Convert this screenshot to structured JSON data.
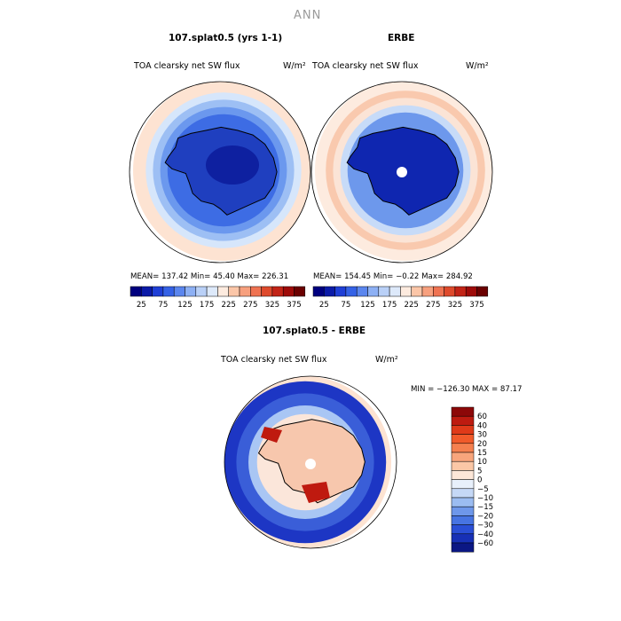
{
  "figure": {
    "super_title": "ANN"
  },
  "colors": {
    "coast": "#000000",
    "ocean_background": "#fde3d2",
    "ice_blue_deep": "#1d36c4",
    "accent_red": "#bf1a0f"
  },
  "chart_data": [
    {
      "type": "heatmap",
      "projection": "south-polar-stereographic",
      "title": "107.splat0.5 (yrs 1-1)",
      "field": "TOA clearsky net SW flux",
      "units": "W/m²",
      "stats": {
        "mean": 137.42,
        "min": 45.4,
        "max": 226.31
      },
      "stats_text": "MEAN= 137.42  Min=  45.40  Max= 226.31",
      "contour_levels": [
        25,
        50,
        75,
        100,
        125,
        150,
        175,
        200,
        225,
        250,
        275,
        300,
        325,
        350,
        375
      ],
      "colorbar_tick_labels": [
        "25",
        "75",
        "125",
        "175",
        "225",
        "275",
        "325",
        "375"
      ],
      "colorbar_orientation": "horizontal",
      "colorbar_colors": [
        "#00007f",
        "#0b1ba8",
        "#1f3fd6",
        "#3562e6",
        "#5b86ee",
        "#8db0f4",
        "#b9d0f7",
        "#dde9fa",
        "#fdebdf",
        "#fbc6a8",
        "#f7a07e",
        "#ef7352",
        "#de4a2c",
        "#c22417",
        "#9e0b09",
        "#6b0000"
      ],
      "field_rings": [
        {
          "radius_fraction": 1.0,
          "color": "#fde3d2"
        },
        {
          "radius_fraction": 0.86,
          "color": "#d6e6fb"
        },
        {
          "radius_fraction": 0.78,
          "color": "#9dbff4"
        },
        {
          "radius_fraction": 0.7,
          "color": "#6b98ee"
        },
        {
          "radius_fraction": 0.62,
          "color": "#3d6ce4"
        }
      ]
    },
    {
      "type": "heatmap",
      "projection": "south-polar-stereographic",
      "title": "ERBE",
      "field": "TOA clearsky net SW flux",
      "units": "W/m²",
      "stats": {
        "mean": 154.45,
        "min": -0.22,
        "max": 284.92
      },
      "stats_text": "MEAN= 154.45  Min=  −0.22  Max= 284.92",
      "contour_levels": [
        25,
        50,
        75,
        100,
        125,
        150,
        175,
        200,
        225,
        250,
        275,
        300,
        325,
        350,
        375
      ],
      "colorbar_tick_labels": [
        "25",
        "75",
        "125",
        "175",
        "225",
        "275",
        "325",
        "375"
      ],
      "colorbar_orientation": "horizontal",
      "colorbar_colors": [
        "#00007f",
        "#0b1ba8",
        "#1f3fd6",
        "#3562e6",
        "#5b86ee",
        "#8db0f4",
        "#b9d0f7",
        "#dde9fa",
        "#fdebdf",
        "#fbc6a8",
        "#f7a07e",
        "#ef7352",
        "#de4a2c",
        "#c22417",
        "#9e0b09",
        "#6b0000"
      ],
      "field_rings": [
        {
          "radius_fraction": 1.0,
          "color": "#fdebdf"
        },
        {
          "radius_fraction": 0.88,
          "color": "#f9c9ae"
        },
        {
          "radius_fraction": 0.8,
          "color": "#fbe4d6"
        },
        {
          "radius_fraction": 0.72,
          "color": "#c7dbf8"
        },
        {
          "radius_fraction": 0.64,
          "color": "#6d98ec"
        }
      ]
    },
    {
      "type": "heatmap",
      "projection": "south-polar-stereographic",
      "title": "107.splat0.5 - ERBE",
      "field": "TOA clearsky net SW flux",
      "units": "W/m²",
      "stats": {
        "min": -126.3,
        "max": 87.17
      },
      "stats_text": "MIN = −126.30  MAX =  87.17",
      "contour_levels": [
        -60,
        -40,
        -30,
        -20,
        -15,
        -10,
        -5,
        0,
        5,
        10,
        15,
        20,
        30,
        40,
        60
      ],
      "colorbar_tick_labels": [
        "60",
        "40",
        "30",
        "20",
        "15",
        "10",
        "5",
        "0",
        "−5",
        "−10",
        "−15",
        "−20",
        "−30",
        "−40",
        "−60"
      ],
      "colorbar_orientation": "vertical",
      "colorbar_colors": [
        "#8c0808",
        "#bd1b10",
        "#df3a19",
        "#f15a2a",
        "#f5804f",
        "#f8a57c",
        "#fbc7a6",
        "#fde7d8",
        "#e8f0fb",
        "#c5d8f6",
        "#9bbcf1",
        "#6e97ea",
        "#4774e2",
        "#2a4fd6",
        "#1730b6",
        "#0b1784"
      ],
      "field_rings": [
        {
          "radius_fraction": 1.0,
          "color": "#fde3d2"
        },
        {
          "radius_fraction": 0.94,
          "color": "#1d36c4"
        },
        {
          "radius_fraction": 0.8,
          "color": "#3a5ed8"
        },
        {
          "radius_fraction": 0.66,
          "color": "#a9c6f4"
        },
        {
          "radius_fraction": 0.56,
          "color": "#fbe6da"
        }
      ]
    }
  ]
}
